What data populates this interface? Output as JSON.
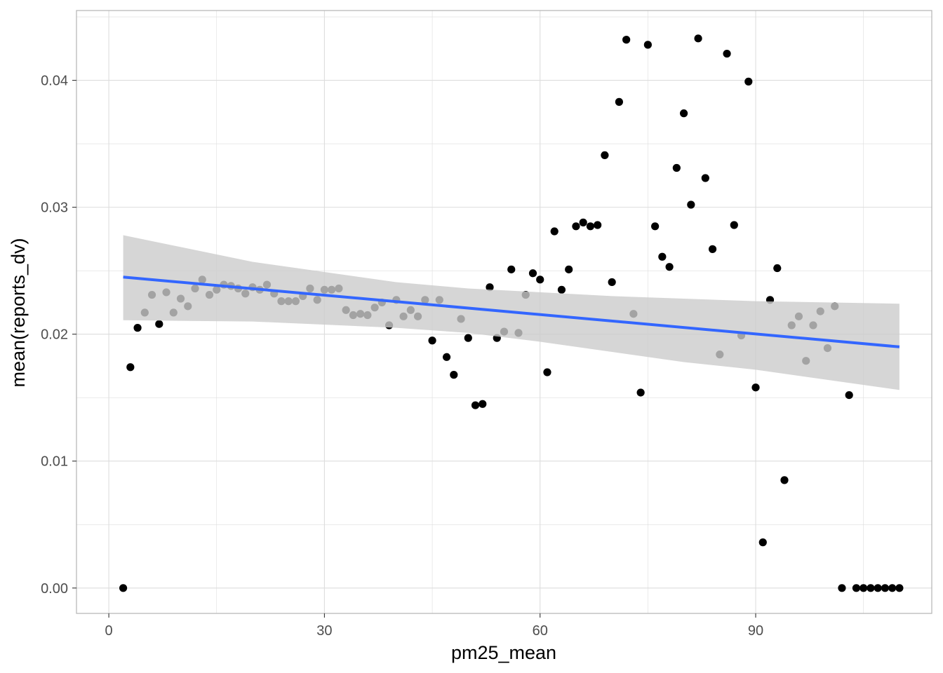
{
  "chart_data": {
    "type": "scatter",
    "title": "",
    "xlabel": "pm25_mean",
    "ylabel": "mean(reports_dv)",
    "xlim": [
      -4.5,
      114.5
    ],
    "ylim": [
      -0.002,
      0.0455
    ],
    "x_ticks": [
      0,
      30,
      60,
      90
    ],
    "x_tick_labels": [
      "0",
      "30",
      "60",
      "90"
    ],
    "y_ticks": [
      0,
      0.01,
      0.02,
      0.03,
      0.04
    ],
    "y_tick_labels": [
      "0.00",
      "0.01",
      "0.02",
      "0.03",
      "0.04"
    ],
    "grid": true,
    "legend": "none",
    "points": [
      [
        2,
        0
      ],
      [
        3,
        0.0174
      ],
      [
        4,
        0.0205
      ],
      [
        5,
        0.0217
      ],
      [
        6,
        0.0231
      ],
      [
        7,
        0.0208
      ],
      [
        8,
        0.0233
      ],
      [
        9,
        0.0217
      ],
      [
        10,
        0.0228
      ],
      [
        11,
        0.0222
      ],
      [
        12,
        0.0236
      ],
      [
        13,
        0.0243
      ],
      [
        14,
        0.0231
      ],
      [
        15,
        0.0235
      ],
      [
        16,
        0.0239
      ],
      [
        17,
        0.0238
      ],
      [
        18,
        0.0236
      ],
      [
        19,
        0.0232
      ],
      [
        20,
        0.0237
      ],
      [
        21,
        0.0235
      ],
      [
        22,
        0.0239
      ],
      [
        23,
        0.0232
      ],
      [
        24,
        0.0226
      ],
      [
        25,
        0.0226
      ],
      [
        26,
        0.0226
      ],
      [
        27,
        0.023
      ],
      [
        28,
        0.0236
      ],
      [
        29,
        0.0227
      ],
      [
        30,
        0.0235
      ],
      [
        31,
        0.0235
      ],
      [
        32,
        0.0236
      ],
      [
        33,
        0.0219
      ],
      [
        34,
        0.0215
      ],
      [
        35,
        0.0216
      ],
      [
        36,
        0.0215
      ],
      [
        37,
        0.0221
      ],
      [
        38,
        0.0225
      ],
      [
        39,
        0.0207
      ],
      [
        40,
        0.0227
      ],
      [
        41,
        0.0214
      ],
      [
        42,
        0.0219
      ],
      [
        43,
        0.0214
      ],
      [
        44,
        0.0227
      ],
      [
        45,
        0.0195
      ],
      [
        46,
        0.0227
      ],
      [
        47,
        0.0182
      ],
      [
        48,
        0.0168
      ],
      [
        49,
        0.0212
      ],
      [
        50,
        0.0197
      ],
      [
        51,
        0.0144
      ],
      [
        52,
        0.0145
      ],
      [
        53,
        0.0237
      ],
      [
        54,
        0.0197
      ],
      [
        55,
        0.0202
      ],
      [
        56,
        0.0251
      ],
      [
        57,
        0.0201
      ],
      [
        58,
        0.0231
      ],
      [
        59,
        0.0248
      ],
      [
        60,
        0.0243
      ],
      [
        61,
        0.017
      ],
      [
        62,
        0.0281
      ],
      [
        63,
        0.0235
      ],
      [
        64,
        0.0251
      ],
      [
        65,
        0.0285
      ],
      [
        66,
        0.0288
      ],
      [
        67,
        0.0285
      ],
      [
        68,
        0.0286
      ],
      [
        69,
        0.0341
      ],
      [
        70,
        0.0241
      ],
      [
        71,
        0.0383
      ],
      [
        72,
        0.0432
      ],
      [
        73,
        0.0216
      ],
      [
        74,
        0.0154
      ],
      [
        75,
        0.0428
      ],
      [
        76,
        0.0285
      ],
      [
        77,
        0.0261
      ],
      [
        78,
        0.0253
      ],
      [
        79,
        0.0331
      ],
      [
        80,
        0.0374
      ],
      [
        81,
        0.0302
      ],
      [
        82,
        0.0433
      ],
      [
        83,
        0.0323
      ],
      [
        84,
        0.0267
      ],
      [
        85,
        0.0184
      ],
      [
        86,
        0.0421
      ],
      [
        87,
        0.0286
      ],
      [
        88,
        0.0199
      ],
      [
        89,
        0.0399
      ],
      [
        90,
        0.0158
      ],
      [
        91,
        0.0036
      ],
      [
        92,
        0.0227
      ],
      [
        93,
        0.0252
      ],
      [
        94,
        0.0085
      ],
      [
        95,
        0.0207
      ],
      [
        96,
        0.0214
      ],
      [
        97,
        0.0179
      ],
      [
        98,
        0.0207
      ],
      [
        99,
        0.0218
      ],
      [
        100,
        0.0189
      ],
      [
        101,
        0.0222
      ],
      [
        102,
        0
      ],
      [
        103,
        0.0152
      ],
      [
        104,
        0
      ],
      [
        105,
        0
      ],
      [
        106,
        0
      ],
      [
        107,
        0
      ],
      [
        108,
        0
      ],
      [
        109,
        0
      ],
      [
        110,
        0
      ]
    ],
    "trend_line": {
      "color": "#3366ff",
      "x": [
        2,
        110
      ],
      "y": [
        0.0245,
        0.019
      ]
    },
    "confidence_band": {
      "color": "#cccccc",
      "x": [
        2,
        20,
        40,
        50,
        60,
        70,
        80,
        90,
        100,
        110
      ],
      "upper": [
        0.0278,
        0.0257,
        0.0241,
        0.0236,
        0.0233,
        0.023,
        0.0228,
        0.0226,
        0.0225,
        0.0224
      ],
      "lower": [
        0.0211,
        0.021,
        0.0205,
        0.0201,
        0.0194,
        0.0186,
        0.0178,
        0.0172,
        0.0164,
        0.0156
      ]
    },
    "colors": {
      "points": "#000000",
      "grid": "#dddddd",
      "panel_border": "#b3b3b3"
    }
  }
}
